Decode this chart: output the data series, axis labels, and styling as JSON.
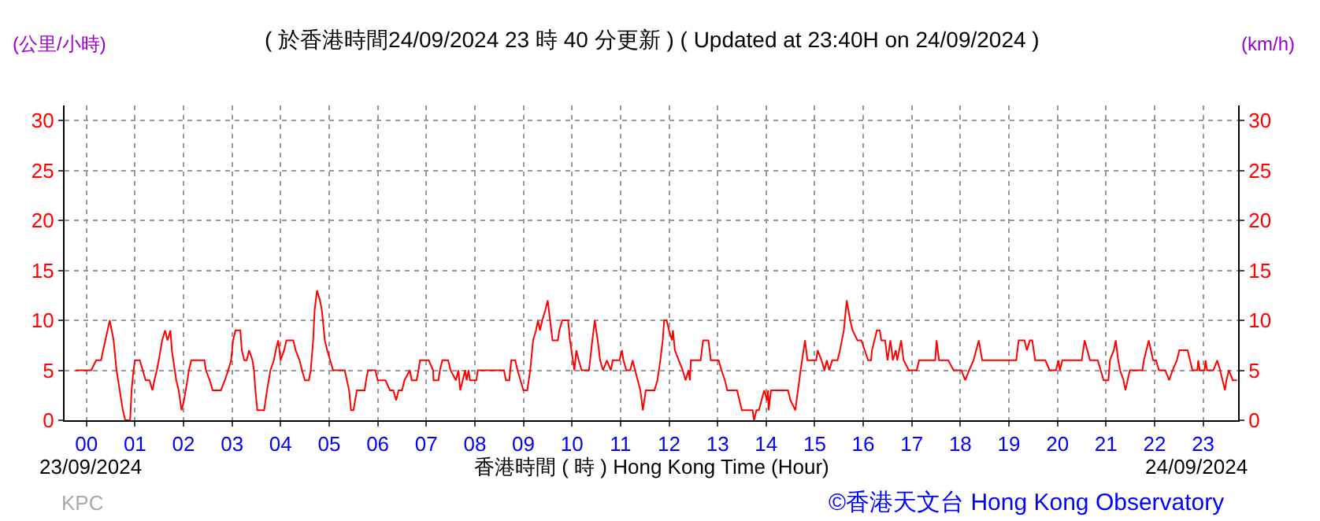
{
  "chart_data": {
    "type": "line",
    "title": "( 於香港時間24/09/2024 23 時 40 分更新 ) ( Updated at 23:40H on 24/09/2024 )",
    "xlabel": "香港時間 ( 時 ) Hong Kong Time (Hour)",
    "ylabel": "(公里/小時)",
    "y2label": "(km/h)",
    "annotations": [
      "23/09/2024",
      "24/09/2024",
      "KPC",
      "©香港天文台 Hong Kong Observatory"
    ],
    "series": [
      {
        "color": "#ff0000",
        "x": [
          -0.22,
          0.1,
          0.2,
          0.3,
          0.48,
          0.56,
          0.6,
          0.62,
          0.75,
          0.8,
          0.9,
          0.93,
          0.97,
          1.0,
          1.1,
          1.16,
          1.22,
          1.3,
          1.36,
          1.4,
          1.45,
          1.49,
          1.56,
          1.62,
          1.67,
          1.73,
          1.76,
          1.82,
          1.85,
          1.9,
          1.96,
          2.01,
          2.08,
          2.11,
          2.16,
          2.43,
          2.46,
          2.54,
          2.6,
          2.77,
          2.85,
          2.92,
          2.98,
          3.02,
          3.07,
          3.17,
          3.2,
          3.25,
          3.3,
          3.35,
          3.42,
          3.45,
          3.48,
          3.52,
          3.66,
          3.72,
          3.79,
          3.86,
          3.9,
          3.95,
          4.0,
          4.07,
          4.12,
          4.26,
          4.31,
          4.39,
          4.44,
          4.5,
          4.58,
          4.62,
          4.67,
          4.7,
          4.75,
          4.81,
          4.85,
          4.91,
          4.96,
          5.02,
          5.08,
          5.32,
          5.41,
          5.45,
          5.5,
          5.57,
          5.73,
          5.76,
          5.8,
          5.95,
          6.0,
          6.16,
          6.25,
          6.32,
          6.38,
          6.43,
          6.5,
          6.55,
          6.66,
          6.7,
          6.8,
          6.84,
          6.87,
          7.05,
          7.14,
          7.15,
          7.25,
          7.28,
          7.33,
          7.45,
          7.5,
          7.61,
          7.66,
          7.7,
          7.75,
          7.8,
          7.83,
          7.87,
          7.9,
          8.03,
          8.06,
          8.6,
          8.64,
          8.71,
          8.75,
          8.83,
          8.88,
          8.94,
          9.0,
          9.08,
          9.14,
          9.2,
          9.26,
          9.3,
          9.34,
          9.39,
          9.45,
          9.5,
          9.55,
          9.6,
          9.71,
          9.74,
          9.8,
          9.92,
          9.96,
          10.02,
          10.05,
          10.09,
          10.14,
          10.2,
          10.35,
          10.42,
          10.47,
          10.53,
          10.58,
          10.64,
          10.72,
          10.8,
          10.84,
          10.98,
          11.03,
          11.06,
          11.12,
          11.2,
          11.25,
          11.3,
          11.41,
          11.46,
          11.52,
          11.7,
          11.76,
          11.82,
          11.87,
          11.9,
          11.95,
          12.0,
          12.06,
          12.08,
          12.12,
          12.2,
          12.28,
          12.34,
          12.4,
          12.43,
          12.45,
          12.65,
          12.7,
          12.81,
          12.86,
          13.02,
          13.08,
          13.15,
          13.2,
          13.4,
          13.45,
          13.5,
          13.72,
          13.75,
          13.8,
          13.85,
          13.96,
          14.02,
          14.04,
          14.05,
          14.1,
          14.45,
          14.5,
          14.6,
          14.71,
          14.8,
          14.85,
          15.03,
          15.06,
          15.14,
          15.2,
          15.25,
          15.3,
          15.36,
          15.47,
          15.52,
          15.6,
          15.66,
          15.73,
          15.78,
          15.88,
          15.96,
          16.1,
          16.16,
          16.18,
          16.23,
          16.28,
          16.34,
          16.37,
          16.45,
          16.5,
          16.56,
          16.61,
          16.67,
          16.7,
          16.78,
          16.83,
          16.94,
          17.1,
          17.15,
          17.48,
          17.51,
          17.56,
          17.75,
          17.86,
          18.02,
          18.1,
          18.18,
          18.27,
          18.38,
          18.45,
          19.15,
          19.2,
          19.32,
          19.37,
          19.43,
          19.48,
          19.54,
          19.75,
          19.84,
          19.97,
          20.02,
          20.05,
          20.1,
          20.5,
          20.56,
          20.67,
          20.83,
          20.89,
          20.95,
          21.05,
          21.08,
          21.16,
          21.2,
          21.25,
          21.29,
          21.36,
          21.4,
          21.49,
          21.75,
          21.78,
          21.88,
          21.97,
          22.03,
          22.09,
          22.22,
          22.3,
          22.37,
          22.46,
          22.51,
          22.68,
          22.73,
          22.78,
          22.88,
          22.9,
          22.93,
          23.03,
          23.05,
          23.08,
          23.21,
          23.29,
          23.35,
          23.45,
          23.48,
          23.53,
          23.61,
          23.7
        ],
        "values": [
          5,
          5,
          6,
          6,
          10,
          8,
          6,
          5,
          1,
          0,
          0,
          3,
          5,
          6,
          6,
          5,
          4,
          4,
          3,
          4,
          5,
          6,
          8,
          9,
          8,
          9,
          7,
          5,
          4,
          3,
          1,
          2,
          4,
          5,
          6,
          6,
          5,
          4,
          3,
          3,
          4,
          5,
          6,
          8,
          9,
          9,
          7,
          6,
          6,
          7,
          6,
          5,
          3,
          1,
          1,
          3,
          5,
          6,
          7,
          8,
          6,
          7,
          8,
          8,
          7,
          6,
          5,
          4,
          4,
          5,
          8,
          11,
          13,
          12,
          11,
          8,
          7,
          6,
          5,
          5,
          3,
          1,
          1,
          3,
          3,
          4,
          5,
          5,
          4,
          4,
          3,
          3,
          2,
          3,
          3,
          4,
          5,
          4,
          4,
          5,
          6,
          6,
          5,
          4,
          4,
          5,
          6,
          6,
          5,
          4,
          5,
          3,
          4,
          5,
          4,
          5,
          4,
          4,
          5,
          5,
          4,
          4,
          6,
          6,
          5,
          4,
          3,
          3,
          5,
          8,
          9,
          10,
          9,
          10,
          11,
          12,
          10,
          8,
          8,
          9,
          10,
          10,
          8,
          6,
          5,
          7,
          6,
          5,
          5,
          8,
          10,
          8,
          6,
          5,
          6,
          5,
          6,
          6,
          7,
          6,
          5,
          5,
          6,
          5,
          3,
          1,
          3,
          3,
          4,
          6,
          8,
          10,
          10,
          9,
          8,
          9,
          7,
          6,
          5,
          4,
          5,
          4,
          6,
          6,
          8,
          8,
          6,
          6,
          5,
          4,
          3,
          3,
          2,
          1,
          1,
          0,
          1,
          1,
          3,
          2,
          3,
          1,
          3,
          3,
          2,
          1,
          5,
          8,
          6,
          6,
          7,
          6,
          5,
          6,
          5,
          6,
          6,
          7,
          9,
          12,
          10,
          9,
          8,
          8,
          6,
          6,
          7,
          8,
          9,
          9,
          8,
          8,
          6,
          8,
          6,
          7,
          6,
          8,
          6,
          5,
          5,
          6,
          6,
          8,
          6,
          6,
          5,
          5,
          4,
          5,
          6,
          8,
          6,
          6,
          8,
          8,
          7,
          8,
          8,
          6,
          6,
          5,
          5,
          6,
          5,
          6,
          6,
          8,
          6,
          6,
          5,
          4,
          4,
          6,
          7,
          8,
          6,
          5,
          4,
          3,
          5,
          5,
          6,
          8,
          6,
          6,
          5,
          5,
          4,
          5,
          6,
          7,
          7,
          6,
          5,
          5,
          6,
          5,
          5,
          6,
          5,
          5,
          6,
          5,
          3,
          4,
          5,
          4,
          4
        ]
      }
    ],
    "xlim": [
      -0.45,
      23.72
    ],
    "xticks": [
      {
        "value": 0,
        "label": "00"
      },
      {
        "value": 1,
        "label": "01"
      },
      {
        "value": 2,
        "label": "02"
      },
      {
        "value": 3,
        "label": "03"
      },
      {
        "value": 4,
        "label": "04"
      },
      {
        "value": 5,
        "label": "05"
      },
      {
        "value": 6,
        "label": "06"
      },
      {
        "value": 7,
        "label": "07"
      },
      {
        "value": 8,
        "label": "08"
      },
      {
        "value": 9,
        "label": "09"
      },
      {
        "value": 10,
        "label": "10"
      },
      {
        "value": 11,
        "label": "11"
      },
      {
        "value": 12,
        "label": "12"
      },
      {
        "value": 13,
        "label": "13"
      },
      {
        "value": 14,
        "label": "14"
      },
      {
        "value": 15,
        "label": "15"
      },
      {
        "value": 16,
        "label": "16"
      },
      {
        "value": 17,
        "label": "17"
      },
      {
        "value": 18,
        "label": "18"
      },
      {
        "value": 19,
        "label": "19"
      },
      {
        "value": 20,
        "label": "20"
      },
      {
        "value": 21,
        "label": "21"
      },
      {
        "value": 22,
        "label": "22"
      },
      {
        "value": 23,
        "label": "23"
      }
    ],
    "ylim": [
      0,
      31.5
    ],
    "yticks": [
      0,
      5,
      10,
      15,
      20,
      25,
      30
    ],
    "y2lim": [
      0,
      31.5
    ],
    "y2ticks": [
      0,
      5,
      10,
      15,
      20,
      25,
      30
    ],
    "grid": true,
    "marker": "none",
    "line_style": "solid"
  }
}
